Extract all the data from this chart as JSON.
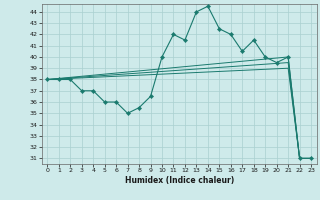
{
  "xlabel": "Humidex (Indice chaleur)",
  "bg_color": "#ceeaea",
  "grid_color": "#aad0d0",
  "line_color": "#1a7a6e",
  "xlim": [
    -0.5,
    23.5
  ],
  "ylim": [
    30.5,
    44.7
  ],
  "yticks": [
    31,
    32,
    33,
    34,
    35,
    36,
    37,
    38,
    39,
    40,
    41,
    42,
    43,
    44
  ],
  "xticks": [
    0,
    1,
    2,
    3,
    4,
    5,
    6,
    7,
    8,
    9,
    10,
    11,
    12,
    13,
    14,
    15,
    16,
    17,
    18,
    19,
    20,
    21,
    22,
    23
  ],
  "series": [
    {
      "x": [
        0,
        1,
        2,
        3,
        4,
        5,
        6,
        7,
        8,
        9,
        10,
        11,
        12,
        13,
        14,
        15,
        16,
        17,
        18,
        19,
        20,
        21,
        22,
        23
      ],
      "y": [
        38,
        38,
        38,
        37,
        37,
        36,
        36,
        35,
        35.5,
        36.5,
        40,
        42,
        41.5,
        44,
        44.5,
        42.5,
        42,
        40.5,
        41.5,
        40,
        39.5,
        40,
        31,
        31
      ],
      "marker": true
    },
    {
      "x": [
        0,
        21,
        22,
        23
      ],
      "y": [
        38,
        39,
        31,
        31
      ],
      "marker": false
    },
    {
      "x": [
        0,
        21,
        22,
        23
      ],
      "y": [
        38,
        39.5,
        31,
        31
      ],
      "marker": false
    },
    {
      "x": [
        0,
        21,
        22,
        23
      ],
      "y": [
        38,
        40,
        31,
        31
      ],
      "marker": false
    }
  ]
}
